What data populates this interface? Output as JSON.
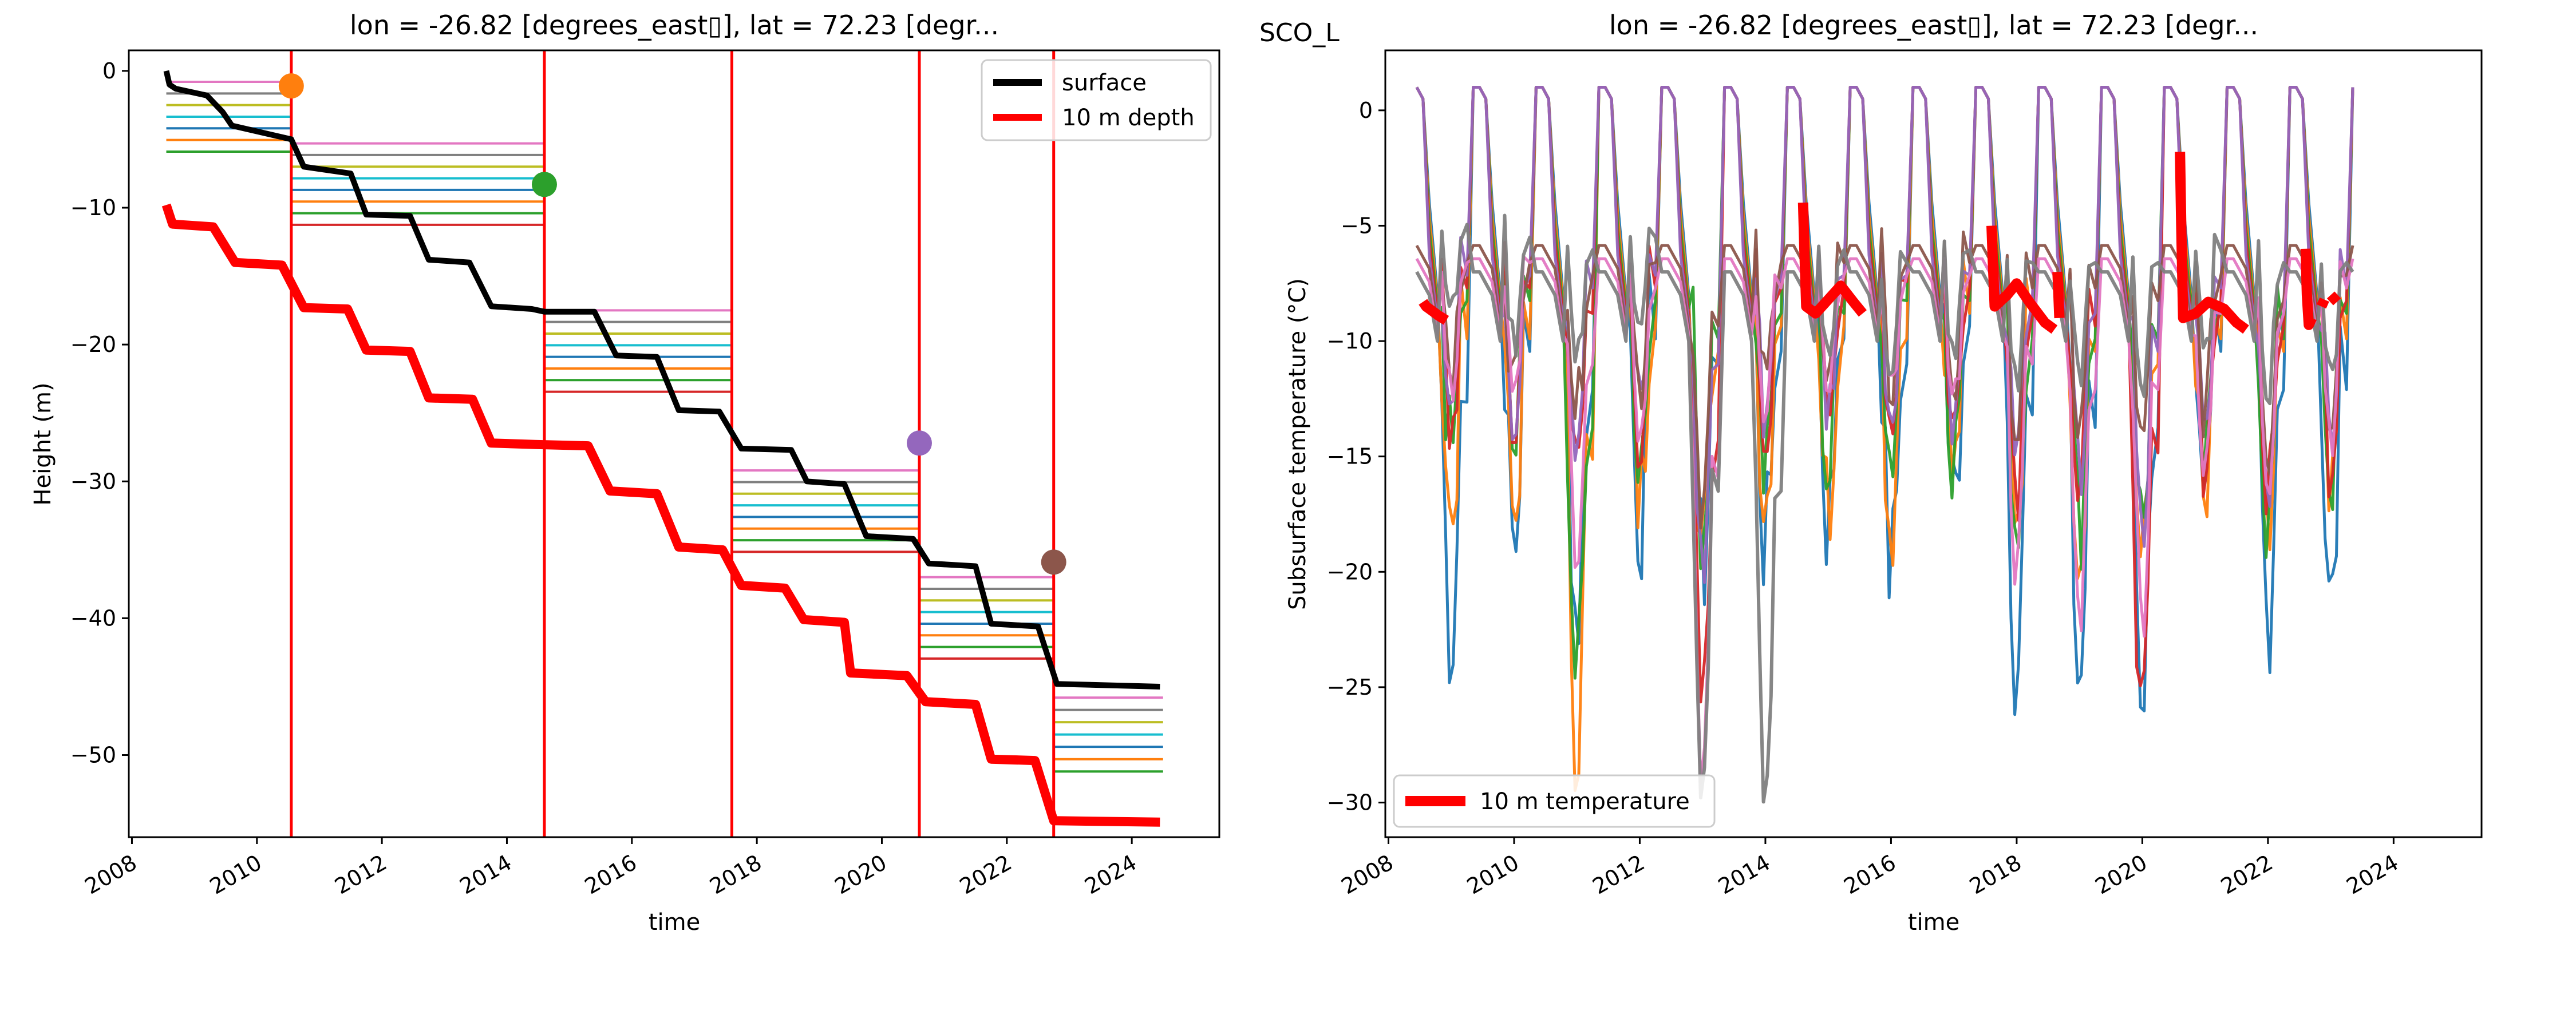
{
  "figure": {
    "suptitle": "SCO_L"
  },
  "chart_data": [
    {
      "type": "line",
      "title": "lon = -26.82 [degrees_east▯], lat = 72.23 [degr...",
      "xlabel": "time",
      "ylabel": "Height (m)",
      "xlim": [
        2007.95,
        2025.4
      ],
      "ylim": [
        -56,
        1.5
      ],
      "x_ticks": [
        2008,
        2010,
        2012,
        2014,
        2016,
        2018,
        2020,
        2022,
        2024
      ],
      "y_ticks": [
        0,
        -10,
        -20,
        -30,
        -40,
        -50
      ],
      "legend": {
        "placement": "top-right",
        "entries": [
          {
            "label": "surface",
            "color": "#000000"
          },
          {
            "label": "10 m depth",
            "color": "#ff0000"
          }
        ]
      },
      "maintenance_dates": [
        2010.55,
        2014.6,
        2017.6,
        2020.6,
        2022.75
      ],
      "surface": {
        "name": "surface",
        "color": "#000000",
        "points": [
          [
            2008.55,
            0
          ],
          [
            2008.6,
            -1.0
          ],
          [
            2008.7,
            -1.3
          ],
          [
            2009.2,
            -1.8
          ],
          [
            2009.45,
            -3.0
          ],
          [
            2009.6,
            -4.0
          ],
          [
            2010.55,
            -5.0
          ],
          [
            2010.75,
            -7.0
          ],
          [
            2011.5,
            -7.5
          ],
          [
            2011.75,
            -10.5
          ],
          [
            2012.45,
            -10.6
          ],
          [
            2012.75,
            -13.8
          ],
          [
            2013.4,
            -14.0
          ],
          [
            2013.75,
            -17.2
          ],
          [
            2014.4,
            -17.4
          ],
          [
            2014.6,
            -17.6
          ],
          [
            2015.4,
            -17.6
          ],
          [
            2015.75,
            -20.8
          ],
          [
            2016.4,
            -20.9
          ],
          [
            2016.75,
            -24.8
          ],
          [
            2017.4,
            -24.9
          ],
          [
            2017.75,
            -27.6
          ],
          [
            2018.55,
            -27.7
          ],
          [
            2018.8,
            -30.0
          ],
          [
            2019.4,
            -30.2
          ],
          [
            2019.75,
            -34.0
          ],
          [
            2020.5,
            -34.2
          ],
          [
            2020.75,
            -36.0
          ],
          [
            2021.5,
            -36.2
          ],
          [
            2021.75,
            -40.4
          ],
          [
            2022.5,
            -40.6
          ],
          [
            2022.8,
            -44.8
          ],
          [
            2024.45,
            -45.0
          ]
        ]
      },
      "depth_10m": {
        "name": "10 m depth",
        "color": "#ff0000",
        "points": [
          [
            2008.55,
            -9.8
          ],
          [
            2008.65,
            -11.2
          ],
          [
            2009.3,
            -11.4
          ],
          [
            2009.65,
            -14.0
          ],
          [
            2010.4,
            -14.2
          ],
          [
            2010.75,
            -17.3
          ],
          [
            2011.45,
            -17.4
          ],
          [
            2011.75,
            -20.4
          ],
          [
            2012.45,
            -20.5
          ],
          [
            2012.75,
            -23.9
          ],
          [
            2013.45,
            -24.0
          ],
          [
            2013.75,
            -27.2
          ],
          [
            2014.45,
            -27.3
          ],
          [
            2015.3,
            -27.4
          ],
          [
            2015.65,
            -30.7
          ],
          [
            2016.4,
            -30.9
          ],
          [
            2016.75,
            -34.8
          ],
          [
            2017.45,
            -35.0
          ],
          [
            2017.75,
            -37.6
          ],
          [
            2018.45,
            -37.8
          ],
          [
            2018.75,
            -40.1
          ],
          [
            2019.4,
            -40.3
          ],
          [
            2019.5,
            -44.0
          ],
          [
            2020.4,
            -44.2
          ],
          [
            2020.7,
            -46.1
          ],
          [
            2021.5,
            -46.3
          ],
          [
            2021.75,
            -50.3
          ],
          [
            2022.45,
            -50.4
          ],
          [
            2022.75,
            -54.8
          ],
          [
            2024.45,
            -54.9
          ]
        ]
      },
      "install_markers": [
        {
          "date": 2010.55,
          "height": -1.1,
          "color": "#ff7f0e"
        },
        {
          "date": 2014.6,
          "height": -8.3,
          "color": "#2ca02c"
        },
        {
          "date": 2020.6,
          "height": -27.2,
          "color": "#9467bd"
        },
        {
          "date": 2022.75,
          "height": -35.9,
          "color": "#8c564b"
        }
      ],
      "sensor_level_sets": [
        {
          "from": 2008.55,
          "to": 2010.55,
          "top": -0.8,
          "step": 0.85,
          "count": 7
        },
        {
          "from": 2010.55,
          "to": 2014.6,
          "top": -5.3,
          "step": 0.85,
          "count": 8
        },
        {
          "from": 2014.6,
          "to": 2017.6,
          "top": -17.5,
          "step": 0.85,
          "count": 8
        },
        {
          "from": 2017.6,
          "to": 2020.6,
          "top": -29.2,
          "step": 0.85,
          "count": 8
        },
        {
          "from": 2020.6,
          "to": 2022.75,
          "top": -37.0,
          "step": 0.85,
          "count": 8
        },
        {
          "from": 2022.75,
          "to": 2024.5,
          "top": -45.8,
          "step": 0.9,
          "count": 7
        }
      ],
      "level_colors": [
        "#e377c2",
        "#7f7f7f",
        "#bcbd22",
        "#17becf",
        "#1f77b4",
        "#ff7f0e",
        "#2ca02c",
        "#d62728"
      ]
    },
    {
      "type": "line",
      "title": "lon = -26.82 [degrees_east▯], lat = 72.23 [degr...",
      "xlabel": "time",
      "ylabel": "Subsurface temperature (°C)",
      "xlim": [
        2007.95,
        2025.4
      ],
      "ylim": [
        -31.5,
        2.6
      ],
      "x_ticks": [
        2008,
        2010,
        2012,
        2014,
        2016,
        2018,
        2020,
        2022,
        2024
      ],
      "y_ticks": [
        0,
        -5,
        -10,
        -15,
        -20,
        -25,
        -30
      ],
      "legend": {
        "placement": "bottom-left",
        "entries": [
          {
            "label": "10 m temperature",
            "color": "#ff0000"
          }
        ]
      },
      "series_colors": [
        "#1f77b4",
        "#ff7f0e",
        "#2ca02c",
        "#d62728",
        "#9467bd",
        "#8c564b",
        "#e377c2",
        "#7f7f7f"
      ],
      "annual_minima": [
        {
          "year": 2009,
          "values": [
            -23,
            -18,
            -15,
            -14,
            -13,
            -12,
            -12,
            -9
          ]
        },
        {
          "year": 2010,
          "values": [
            -19,
            -18,
            -15,
            -14,
            -13,
            -12,
            -12,
            -10
          ]
        },
        {
          "year": 2011,
          "values": [
            -22,
            -27.5,
            -25,
            -16,
            -14,
            -13,
            -20,
            -11
          ]
        },
        {
          "year": 2012,
          "values": [
            -18,
            -17,
            -15,
            -14,
            -13,
            -12,
            -14,
            -10
          ]
        },
        {
          "year": 2013,
          "values": [
            -20,
            -19,
            -18,
            -26,
            -20,
            -17,
            -29,
            -30
          ]
        },
        {
          "year": 2014,
          "values": [
            -19,
            -17,
            -16,
            -14,
            -13,
            -12,
            -14,
            -30
          ]
        },
        {
          "year": 2015,
          "values": [
            -18,
            -17,
            -16,
            -14,
            -13,
            -12,
            -13,
            -11
          ]
        },
        {
          "year": 2016,
          "values": [
            -20,
            -18,
            -15,
            -13.5,
            -13,
            -12,
            -13,
            -12
          ]
        },
        {
          "year": 2017,
          "values": [
            -17,
            -16,
            -15,
            -14,
            -13,
            -12,
            -13,
            -11
          ]
        },
        {
          "year": 2018,
          "values": [
            -24,
            -17,
            -18,
            -16,
            -15,
            -14,
            -20,
            -12
          ]
        },
        {
          "year": 2019,
          "values": [
            -25,
            -19,
            -18,
            -17,
            -16,
            -14,
            -22,
            -12
          ]
        },
        {
          "year": 2020,
          "values": [
            -25,
            -20,
            -18,
            -27,
            -19,
            -15,
            -22,
            -12
          ]
        },
        {
          "year": 2021,
          "values": [
            -19,
            -18,
            -16,
            -15,
            -14,
            -13,
            -16,
            -11
          ]
        },
        {
          "year": 2022,
          "values": [
            -22,
            -19,
            -18,
            -17,
            -16,
            -15,
            -16,
            -12
          ]
        },
        {
          "year": 2023,
          "values": [
            -22,
            -18,
            -16,
            -15,
            -14,
            -13,
            -14,
            -12
          ]
        }
      ],
      "temp_10m_segments": [
        [
          [
            2008.55,
            -8.3
          ],
          [
            2008.6,
            -8.5
          ],
          [
            2008.7,
            -8.7
          ],
          [
            2008.8,
            -8.9
          ],
          [
            2008.92,
            -9.1
          ]
        ],
        [
          [
            2014.6,
            -4.0
          ],
          [
            2014.62,
            -6.0
          ],
          [
            2014.65,
            -8.5
          ],
          [
            2014.8,
            -8.8
          ],
          [
            2015.0,
            -8.2
          ],
          [
            2015.2,
            -7.6
          ],
          [
            2015.4,
            -8.3
          ],
          [
            2015.55,
            -8.8
          ]
        ],
        [
          [
            2017.6,
            -5.0
          ],
          [
            2017.62,
            -6.5
          ],
          [
            2017.65,
            -8.5
          ],
          [
            2017.85,
            -8.0
          ],
          [
            2018.0,
            -7.5
          ],
          [
            2018.2,
            -8.3
          ],
          [
            2018.45,
            -9.2
          ],
          [
            2018.6,
            -9.5
          ]
        ],
        [
          [
            2018.65,
            -7.0
          ],
          [
            2018.68,
            -9.0
          ]
        ],
        [
          [
            2020.6,
            -1.8
          ],
          [
            2020.62,
            -5.0
          ],
          [
            2020.65,
            -9.0
          ],
          [
            2020.85,
            -8.8
          ],
          [
            2021.05,
            -8.3
          ],
          [
            2021.3,
            -8.6
          ],
          [
            2021.5,
            -9.2
          ],
          [
            2021.65,
            -9.5
          ]
        ],
        [
          [
            2022.6,
            -6.0
          ],
          [
            2022.62,
            -8.0
          ],
          [
            2022.65,
            -9.3
          ],
          [
            2022.7,
            -9.0
          ]
        ],
        [
          [
            2022.85,
            -8.5
          ],
          [
            2022.9,
            -8.2
          ]
        ],
        [
          [
            2023.0,
            -8.0
          ],
          [
            2023.1,
            -8.3
          ]
        ]
      ]
    }
  ]
}
